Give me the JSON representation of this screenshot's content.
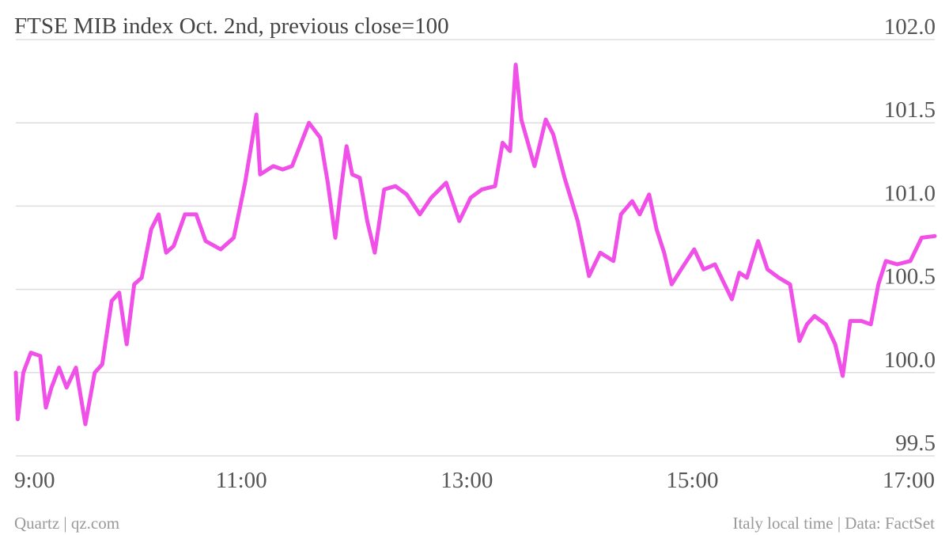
{
  "chart_data": {
    "type": "line",
    "title": "FTSE MIB index Oct. 2nd, previous close=100",
    "source_left": "Quartz | qz.com",
    "source_right": "Italy local time | Data: FactSet",
    "x": [
      "9:00",
      "9:01",
      "9:04",
      "9:08",
      "9:13",
      "9:16",
      "9:19",
      "9:23",
      "9:27",
      "9:32",
      "9:37",
      "9:42",
      "9:46",
      "9:51",
      "9:55",
      "9:59",
      "10:03",
      "10:07",
      "10:12",
      "10:16",
      "10:20",
      "10:24",
      "10:30",
      "10:36",
      "10:41",
      "10:49",
      "10:56",
      "11:02",
      "11:08",
      "11:10",
      "11:17",
      "11:22",
      "11:27",
      "11:36",
      "11:42",
      "11:46",
      "11:50",
      "11:53",
      "11:56",
      "11:59",
      "12:03",
      "12:07",
      "12:11",
      "12:16",
      "12:22",
      "12:28",
      "12:35",
      "12:41",
      "12:49",
      "12:56",
      "13:02",
      "13:08",
      "13:15",
      "13:19",
      "13:23",
      "13:26",
      "13:29",
      "13:36",
      "13:42",
      "13:46",
      "13:52",
      "13:59",
      "14:05",
      "14:11",
      "14:18",
      "14:22",
      "14:28",
      "14:32",
      "14:37",
      "14:41",
      "14:45",
      "14:49",
      "14:54",
      "15:01",
      "15:06",
      "15:12",
      "15:21",
      "15:25",
      "15:29",
      "15:35",
      "15:40",
      "15:46",
      "15:52",
      "15:57",
      "16:01",
      "16:05",
      "16:11",
      "16:16",
      "16:20",
      "16:24",
      "16:30",
      "16:35",
      "16:39",
      "16:43",
      "16:49",
      "16:56",
      "17:02",
      "17:09"
    ],
    "series": [
      {
        "name": "FTSE MIB",
        "color": "#f050e8",
        "values": [
          100.0,
          99.72,
          100.0,
          100.12,
          100.1,
          99.79,
          99.91,
          100.03,
          99.91,
          100.03,
          99.69,
          100.0,
          100.05,
          100.43,
          100.48,
          100.17,
          100.53,
          100.57,
          100.86,
          100.95,
          100.72,
          100.76,
          100.95,
          100.95,
          100.79,
          100.74,
          100.81,
          101.14,
          101.55,
          101.19,
          101.24,
          101.22,
          101.24,
          101.5,
          101.41,
          101.14,
          100.81,
          101.1,
          101.36,
          101.19,
          101.17,
          100.91,
          100.72,
          101.1,
          101.12,
          101.07,
          100.95,
          101.05,
          101.14,
          100.91,
          101.05,
          101.1,
          101.12,
          101.38,
          101.33,
          101.85,
          101.52,
          101.24,
          101.52,
          101.43,
          101.17,
          100.91,
          100.58,
          100.72,
          100.67,
          100.95,
          101.03,
          100.95,
          101.07,
          100.86,
          100.72,
          100.53,
          100.62,
          100.74,
          100.62,
          100.65,
          100.44,
          100.6,
          100.57,
          100.79,
          100.62,
          100.57,
          100.53,
          100.19,
          100.29,
          100.34,
          100.29,
          100.17,
          99.98,
          100.31,
          100.31,
          100.29,
          100.53,
          100.67,
          100.65,
          100.67,
          100.81,
          100.82
        ]
      }
    ],
    "xlim": [
      "9:00",
      "17:09"
    ],
    "xticks": [
      "9:00",
      "11:00",
      "13:00",
      "15:00",
      "17:00"
    ],
    "ylim": [
      99.5,
      102
    ],
    "yticks": [
      {
        "value": 102,
        "label": "102.0"
      },
      {
        "value": 101.5,
        "label": "101.5"
      },
      {
        "value": 101,
        "label": "101.0"
      },
      {
        "value": 100.5,
        "label": "100.5"
      },
      {
        "value": 100,
        "label": "100.0"
      },
      99.5
    ],
    "grid": true
  }
}
